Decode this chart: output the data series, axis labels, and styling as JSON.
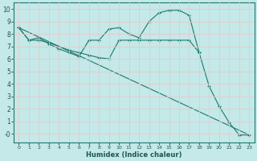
{
  "title": "",
  "xlabel": "Humidex (Indice chaleur)",
  "ylabel": "",
  "bg_color": "#c5e8e8",
  "grid_color": "#e8c8c8",
  "line_color": "#1a7a6e",
  "xlim": [
    -0.5,
    23.5
  ],
  "ylim": [
    -0.7,
    10.5
  ],
  "xticks": [
    0,
    1,
    2,
    3,
    4,
    5,
    6,
    7,
    8,
    9,
    10,
    11,
    12,
    13,
    14,
    15,
    16,
    17,
    18,
    19,
    20,
    21,
    22,
    23
  ],
  "yticks": [
    0,
    1,
    2,
    3,
    4,
    5,
    6,
    7,
    8,
    9,
    10
  ],
  "ytick_labels": [
    "-0",
    "1",
    "2",
    "3",
    "4",
    "5",
    "6",
    "7",
    "8",
    "9",
    "10"
  ],
  "series": [
    {
      "x": [
        0,
        1,
        2,
        3,
        4,
        5,
        6,
        7,
        8,
        9,
        10,
        11,
        12,
        13,
        14,
        15,
        16,
        17,
        18,
        19,
        20,
        21,
        22,
        23
      ],
      "y": [
        8.5,
        7.5,
        7.7,
        7.2,
        6.8,
        6.5,
        6.2,
        7.5,
        7.5,
        8.4,
        8.5,
        8.0,
        7.7,
        9.0,
        9.7,
        9.9,
        9.9,
        9.5,
        6.5,
        3.8,
        2.2,
        0.9,
        -0.1,
        -0.1
      ],
      "has_marker": true
    },
    {
      "x": [
        0,
        1,
        2,
        3,
        4,
        5,
        6,
        7,
        8,
        9,
        10,
        11,
        12,
        13,
        14,
        15,
        16,
        17,
        18
      ],
      "y": [
        8.5,
        7.5,
        7.5,
        7.3,
        7.0,
        6.7,
        6.5,
        6.3,
        6.1,
        6.0,
        7.5,
        7.5,
        7.5,
        7.5,
        7.5,
        7.5,
        7.5,
        7.5,
        6.5
      ],
      "has_marker": true
    },
    {
      "x": [
        0,
        23
      ],
      "y": [
        8.5,
        -0.1
      ],
      "has_marker": false
    }
  ]
}
